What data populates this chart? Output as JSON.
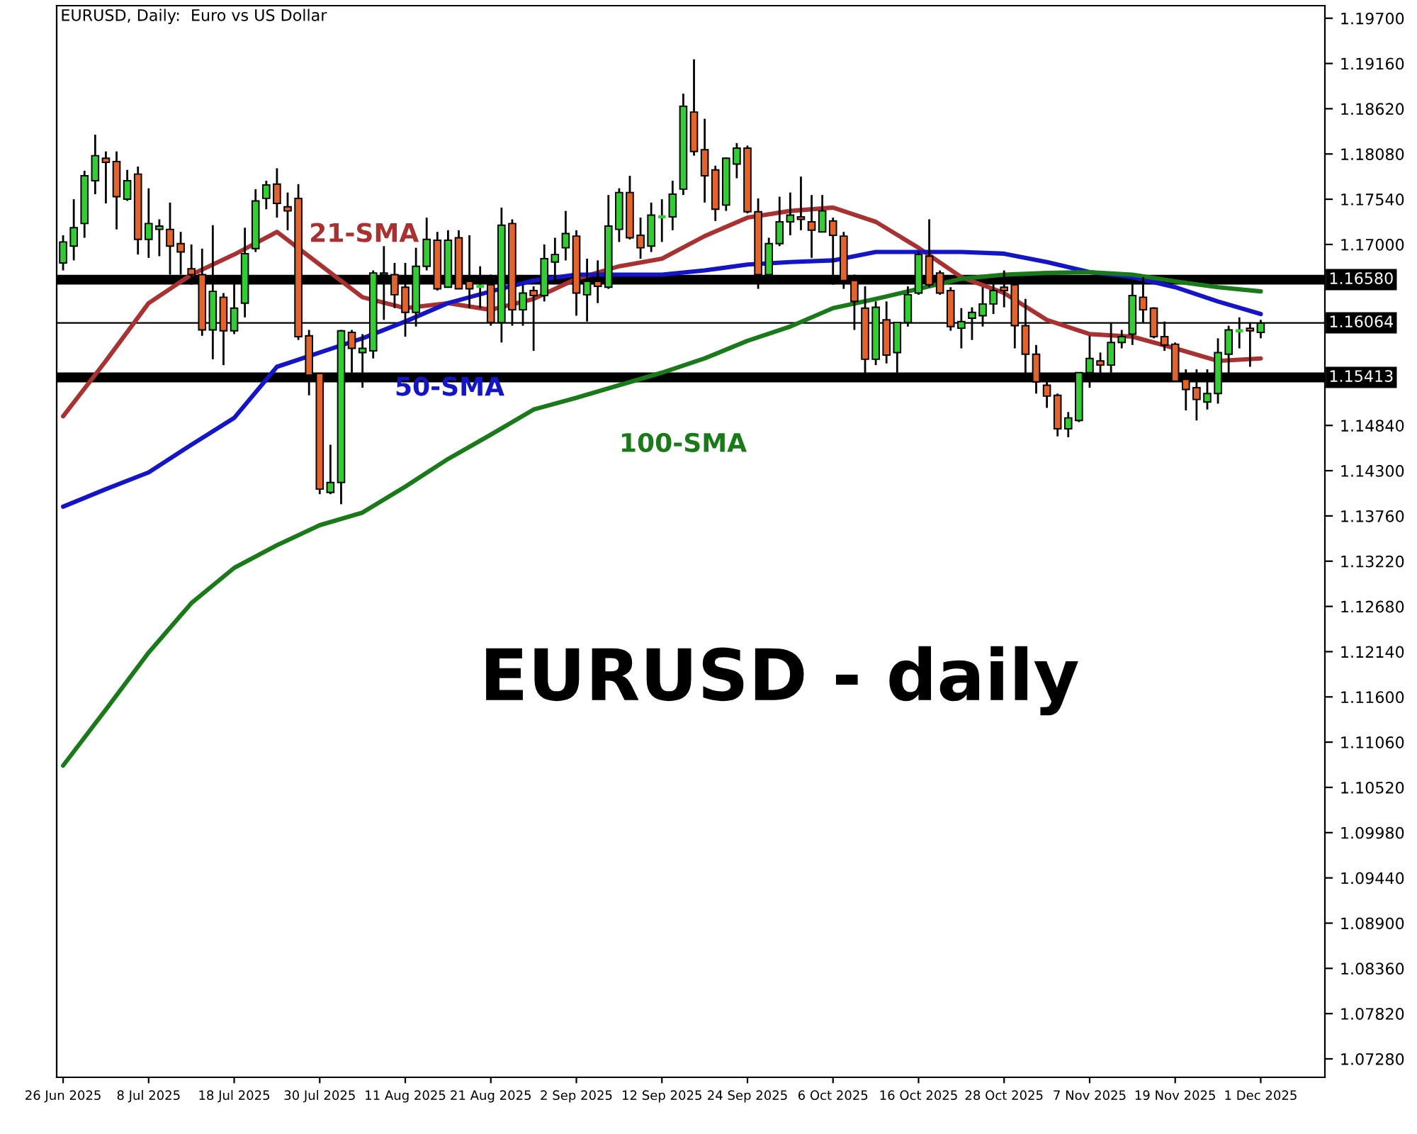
{
  "chart_data": {
    "type": "candlestick",
    "title": "EURUSD, Daily:  Euro vs US Dollar",
    "annotations": [
      "EURUSD - daily"
    ],
    "categories": [
      "26 Jun 2025",
      null,
      null,
      null,
      null,
      null,
      null,
      null,
      "8 Jul 2025",
      null,
      null,
      null,
      null,
      null,
      null,
      null,
      "18 Jul 2025",
      null,
      null,
      null,
      null,
      null,
      null,
      null,
      "30 Jul 2025",
      null,
      null,
      null,
      null,
      null,
      null,
      null,
      "11 Aug 2025",
      null,
      null,
      null,
      null,
      null,
      null,
      null,
      "21 Aug 2025",
      null,
      null,
      null,
      null,
      null,
      null,
      null,
      "2 Sep 2025",
      null,
      null,
      null,
      null,
      null,
      null,
      null,
      "12 Sep 2025",
      null,
      null,
      null,
      null,
      null,
      null,
      null,
      "24 Sep 2025",
      null,
      null,
      null,
      null,
      null,
      null,
      null,
      "6 Oct 2025",
      null,
      null,
      null,
      null,
      null,
      null,
      null,
      "16 Oct 2025",
      null,
      null,
      null,
      null,
      null,
      null,
      null,
      "28 Oct 2025",
      null,
      null,
      null,
      null,
      null,
      null,
      null,
      "7 Nov 2025",
      null,
      null,
      null,
      null,
      null,
      null,
      null,
      "19 Nov 2025",
      null,
      null,
      null,
      null,
      null,
      null,
      null,
      "1 Dec 2025"
    ],
    "ohlc": [
      [
        1.1678,
        1.1711,
        1.1669,
        1.1703
      ],
      [
        1.1698,
        1.1754,
        1.1681,
        1.172
      ],
      [
        1.1725,
        1.1788,
        1.1708,
        1.1782
      ],
      [
        1.1776,
        1.1831,
        1.176,
        1.1806
      ],
      [
        1.1803,
        1.1811,
        1.1749,
        1.1798
      ],
      [
        1.1799,
        1.1811,
        1.1718,
        1.1757
      ],
      [
        1.1754,
        1.1789,
        1.1752,
        1.1776
      ],
      [
        1.1784,
        1.1793,
        1.1688,
        1.1706
      ],
      [
        1.1706,
        1.1767,
        1.1684,
        1.1725
      ],
      [
        1.1718,
        1.173,
        1.1686,
        1.1722
      ],
      [
        1.1718,
        1.175,
        1.1664,
        1.1698
      ],
      [
        1.1701,
        1.1715,
        1.1664,
        1.1691
      ],
      [
        1.1671,
        1.17,
        1.1652,
        1.1664
      ],
      [
        1.1664,
        1.1695,
        1.1591,
        1.1598
      ],
      [
        1.1598,
        1.1723,
        1.1563,
        1.1644
      ],
      [
        1.1637,
        1.1642,
        1.1556,
        1.1597
      ],
      [
        1.1597,
        1.1657,
        1.1593,
        1.1624
      ],
      [
        1.163,
        1.172,
        1.1613,
        1.1689
      ],
      [
        1.1695,
        1.1766,
        1.1691,
        1.1752
      ],
      [
        1.1755,
        1.1776,
        1.1742,
        1.1771
      ],
      [
        1.1772,
        1.1791,
        1.1732,
        1.1749
      ],
      [
        1.1745,
        1.1762,
        1.1717,
        1.174
      ],
      [
        1.1755,
        1.1772,
        1.1586,
        1.159
      ],
      [
        1.1591,
        1.1598,
        1.152,
        1.1544
      ],
      [
        1.1546,
        1.1547,
        1.1402,
        1.1408
      ],
      [
        1.1404,
        1.1461,
        1.1402,
        1.1416
      ],
      [
        1.1416,
        1.1598,
        1.139,
        1.1597
      ],
      [
        1.1595,
        1.1598,
        1.1547,
        1.1576
      ],
      [
        1.1571,
        1.1593,
        1.1529,
        1.1576
      ],
      [
        1.1573,
        1.1669,
        1.1564,
        1.1666
      ],
      [
        1.1664,
        1.1698,
        1.161,
        1.1666
      ],
      [
        1.1664,
        1.1678,
        1.1624,
        1.164
      ],
      [
        1.1649,
        1.1678,
        1.159,
        1.1619
      ],
      [
        1.1619,
        1.1696,
        1.1602,
        1.1674
      ],
      [
        1.1674,
        1.1732,
        1.1669,
        1.1706
      ],
      [
        1.1705,
        1.1715,
        1.1645,
        1.1647
      ],
      [
        1.1649,
        1.1717,
        1.1649,
        1.1705
      ],
      [
        1.1708,
        1.1717,
        1.1647,
        1.1647
      ],
      [
        1.1656,
        1.1711,
        1.1624,
        1.1647
      ],
      [
        1.165,
        1.1674,
        1.1624,
        1.165
      ],
      [
        1.1652,
        1.1664,
        1.1603,
        1.1607
      ],
      [
        1.1607,
        1.1744,
        1.1583,
        1.1723
      ],
      [
        1.1725,
        1.173,
        1.1603,
        1.1622
      ],
      [
        1.1622,
        1.1652,
        1.1603,
        1.1642
      ],
      [
        1.1645,
        1.165,
        1.1573,
        1.1639
      ],
      [
        1.1639,
        1.17,
        1.1632,
        1.1683
      ],
      [
        1.1679,
        1.1708,
        1.1657,
        1.1688
      ],
      [
        1.1696,
        1.174,
        1.1681,
        1.1713
      ],
      [
        1.171,
        1.1717,
        1.1615,
        1.1642
      ],
      [
        1.164,
        1.1683,
        1.1608,
        1.1656
      ],
      [
        1.1656,
        1.1681,
        1.163,
        1.165
      ],
      [
        1.1649,
        1.1759,
        1.1647,
        1.1722
      ],
      [
        1.1718,
        1.1767,
        1.1703,
        1.1762
      ],
      [
        1.1762,
        1.1782,
        1.1706,
        1.1708
      ],
      [
        1.1711,
        1.1732,
        1.1683,
        1.1696
      ],
      [
        1.1698,
        1.175,
        1.1691,
        1.1735
      ],
      [
        1.1733,
        1.1754,
        1.1703,
        1.1733
      ],
      [
        1.1733,
        1.1776,
        1.1717,
        1.176
      ],
      [
        1.1766,
        1.188,
        1.1759,
        1.1865
      ],
      [
        1.1858,
        1.1921,
        1.1806,
        1.1811
      ],
      [
        1.1813,
        1.185,
        1.175,
        1.1782
      ],
      [
        1.1789,
        1.1794,
        1.1728,
        1.1742
      ],
      [
        1.1747,
        1.1804,
        1.174,
        1.1803
      ],
      [
        1.1796,
        1.1821,
        1.1779,
        1.1815
      ],
      [
        1.1815,
        1.1818,
        1.1737,
        1.1739
      ],
      [
        1.1739,
        1.1755,
        1.1647,
        1.1664
      ],
      [
        1.1664,
        1.1708,
        1.1661,
        1.1701
      ],
      [
        1.1701,
        1.1757,
        1.1698,
        1.1727
      ],
      [
        1.1727,
        1.1762,
        1.1711,
        1.1735
      ],
      [
        1.1733,
        1.1781,
        1.1717,
        1.173
      ],
      [
        1.1727,
        1.1759,
        1.1684,
        1.1717
      ],
      [
        1.1715,
        1.1759,
        1.1715,
        1.174
      ],
      [
        1.1728,
        1.1732,
        1.1652,
        1.1711
      ],
      [
        1.171,
        1.1715,
        1.1647,
        1.1657
      ],
      [
        1.1657,
        1.1664,
        1.1598,
        1.1632
      ],
      [
        1.1624,
        1.165,
        1.1546,
        1.1563
      ],
      [
        1.1563,
        1.1632,
        1.1556,
        1.1625
      ],
      [
        1.161,
        1.1632,
        1.1558,
        1.1568
      ],
      [
        1.1571,
        1.1607,
        1.1546,
        1.1607
      ],
      [
        1.1607,
        1.165,
        1.1602,
        1.164
      ],
      [
        1.1642,
        1.1691,
        1.164,
        1.1688
      ],
      [
        1.1686,
        1.173,
        1.1649,
        1.1652
      ],
      [
        1.1666,
        1.1669,
        1.164,
        1.1642
      ],
      [
        1.1645,
        1.1649,
        1.1597,
        1.1602
      ],
      [
        1.16,
        1.1624,
        1.1576,
        1.1608
      ],
      [
        1.1612,
        1.1625,
        1.1586,
        1.1619
      ],
      [
        1.1615,
        1.1649,
        1.1602,
        1.1629
      ],
      [
        1.1629,
        1.1656,
        1.1617,
        1.1645
      ],
      [
        1.1649,
        1.1669,
        1.1625,
        1.1645
      ],
      [
        1.1652,
        1.1656,
        1.1576,
        1.1603
      ],
      [
        1.1603,
        1.1635,
        1.1546,
        1.1569
      ],
      [
        1.1569,
        1.158,
        1.1522,
        1.1536
      ],
      [
        1.1532,
        1.1537,
        1.1505,
        1.1519
      ],
      [
        1.152,
        1.1522,
        1.1471,
        1.148
      ],
      [
        1.148,
        1.15,
        1.147,
        1.1493
      ],
      [
        1.149,
        1.1547,
        1.1488,
        1.1547
      ],
      [
        1.1547,
        1.1591,
        1.1529,
        1.1564
      ],
      [
        1.1561,
        1.1571,
        1.1546,
        1.1556
      ],
      [
        1.1556,
        1.1607,
        1.1546,
        1.1583
      ],
      [
        1.1583,
        1.1598,
        1.1576,
        1.159
      ],
      [
        1.1593,
        1.1657,
        1.158,
        1.1639
      ],
      [
        1.1637,
        1.1661,
        1.1607,
        1.1622
      ],
      [
        1.1624,
        1.1625,
        1.1588,
        1.159
      ],
      [
        1.159,
        1.1608,
        1.1573,
        1.158
      ],
      [
        1.1581,
        1.1583,
        1.1536,
        1.1537
      ],
      [
        1.1539,
        1.1551,
        1.1502,
        1.1527
      ],
      [
        1.1529,
        1.1551,
        1.149,
        1.1515
      ],
      [
        1.1512,
        1.1551,
        1.1503,
        1.1522
      ],
      [
        1.1522,
        1.1588,
        1.151,
        1.1571
      ],
      [
        1.1569,
        1.1603,
        1.1546,
        1.1598
      ],
      [
        1.1597,
        1.1613,
        1.1576,
        1.1597
      ],
      [
        1.16,
        1.1607,
        1.1554,
        1.1597
      ],
      [
        1.1595,
        1.161,
        1.1588,
        1.1606
      ]
    ],
    "colors": [
      "#32cd32",
      "#32cd32",
      "#32cd32",
      "#32cd32",
      "#e2632c",
      "#e2632c",
      "#32cd32",
      "#e2632c",
      "#32cd32",
      "#32cd32",
      "#e2632c",
      "#e2632c",
      "#e2632c",
      "#e2632c",
      "#32cd32",
      "#e2632c",
      "#32cd32",
      "#32cd32",
      "#32cd32",
      "#32cd32",
      "#e2632c",
      "#e2632c",
      "#e2632c",
      "#e2632c",
      "#e2632c",
      "#32cd32",
      "#32cd32",
      "#e2632c",
      "#32cd32",
      "#32cd32",
      "#32cd32",
      "#e2632c",
      "#e2632c",
      "#32cd32",
      "#32cd32",
      "#e2632c",
      "#32cd32",
      "#e2632c",
      "#e2632c",
      "#32cd32",
      "#e2632c",
      "#32cd32",
      "#e2632c",
      "#32cd32",
      "#e2632c",
      "#32cd32",
      "#32cd32",
      "#32cd32",
      "#e2632c",
      "#32cd32",
      "#e2632c",
      "#32cd32",
      "#32cd32",
      "#e2632c",
      "#e2632c",
      "#32cd32",
      "#32cd32",
      "#32cd32",
      "#32cd32",
      "#e2632c",
      "#e2632c",
      "#e2632c",
      "#32cd32",
      "#32cd32",
      "#e2632c",
      "#e2632c",
      "#32cd32",
      "#32cd32",
      "#32cd32",
      "#e2632c",
      "#e2632c",
      "#32cd32",
      "#e2632c",
      "#e2632c",
      "#e2632c",
      "#e2632c",
      "#32cd32",
      "#e2632c",
      "#32cd32",
      "#32cd32",
      "#32cd32",
      "#e2632c",
      "#e2632c",
      "#e2632c",
      "#32cd32",
      "#32cd32",
      "#32cd32",
      "#32cd32",
      "#e2632c",
      "#e2632c",
      "#e2632c",
      "#e2632c",
      "#e2632c",
      "#e2632c",
      "#32cd32",
      "#32cd32",
      "#32cd32",
      "#e2632c",
      "#32cd32",
      "#32cd32",
      "#32cd32",
      "#e2632c",
      "#e2632c",
      "#e2632c",
      "#e2632c",
      "#e2632c",
      "#e2632c",
      "#32cd32",
      "#32cd32",
      "#32cd32",
      "#32cd32",
      "#e2632c",
      "#32cd32"
    ],
    "series": [
      {
        "name": "21-SMA",
        "type": "line",
        "color": "#a83232",
        "values": [
          1.1495,
          null,
          null,
          null,
          1.1561,
          null,
          null,
          null,
          1.163,
          null,
          null,
          null,
          1.1664,
          null,
          null,
          null,
          1.1688,
          null,
          null,
          null,
          1.1715,
          null,
          null,
          null,
          1.1676,
          null,
          null,
          null,
          1.1637,
          null,
          null,
          null,
          1.1624,
          null,
          null,
          null,
          1.163,
          null,
          null,
          null,
          1.1622,
          null,
          null,
          null,
          1.1635,
          null,
          null,
          null,
          1.1659,
          null,
          null,
          null,
          1.1674,
          null,
          null,
          null,
          1.1683,
          null,
          null,
          null,
          1.171,
          null,
          null,
          null,
          1.1732,
          null,
          null,
          null,
          1.174,
          null,
          null,
          null,
          1.1744,
          null,
          null,
          null,
          1.1727,
          null,
          null,
          null,
          1.1696,
          null,
          null,
          null,
          1.1661,
          null,
          null,
          null,
          1.1642,
          null,
          null,
          null,
          1.161,
          null,
          null,
          null,
          1.1593,
          null,
          null,
          null,
          1.159,
          null,
          null,
          null,
          1.1576,
          null,
          null,
          null,
          1.1561,
          null,
          null,
          null,
          1.1564
        ]
      },
      {
        "name": "50-SMA",
        "type": "line",
        "color": "#1515c8",
        "values": [
          1.1387,
          null,
          null,
          null,
          1.1408,
          null,
          null,
          null,
          1.1428,
          null,
          null,
          null,
          1.1461,
          null,
          null,
          null,
          1.1493,
          null,
          null,
          null,
          1.1554,
          null,
          null,
          null,
          1.1571,
          null,
          null,
          null,
          1.1588,
          null,
          null,
          null,
          1.1608,
          null,
          null,
          null,
          1.163,
          null,
          null,
          null,
          1.1644,
          null,
          null,
          null,
          1.1657,
          null,
          null,
          null,
          1.1664,
          null,
          null,
          null,
          1.1664,
          null,
          null,
          null,
          1.1664,
          null,
          null,
          null,
          1.1669,
          null,
          null,
          null,
          1.1676,
          null,
          null,
          null,
          1.1679,
          null,
          null,
          null,
          1.1681,
          null,
          null,
          null,
          1.1691,
          null,
          null,
          null,
          1.1691,
          null,
          null,
          null,
          1.1691,
          null,
          null,
          null,
          1.1689,
          null,
          null,
          null,
          1.1679,
          null,
          null,
          null,
          1.1667,
          null,
          null,
          null,
          1.1661,
          null,
          null,
          null,
          1.1649,
          null,
          null,
          null,
          1.1632,
          null,
          null,
          null,
          1.1617
        ]
      },
      {
        "name": "100-SMA",
        "type": "line",
        "color": "#1a7a1a",
        "values": [
          1.1078,
          null,
          null,
          null,
          1.1145,
          null,
          null,
          null,
          1.1213,
          null,
          null,
          null,
          1.1272,
          null,
          null,
          null,
          1.1314,
          null,
          null,
          null,
          1.1341,
          null,
          null,
          null,
          1.1365,
          null,
          null,
          null,
          1.138,
          null,
          null,
          null,
          1.1411,
          null,
          null,
          null,
          1.1444,
          null,
          null,
          null,
          1.1473,
          null,
          null,
          null,
          1.1503,
          null,
          null,
          null,
          1.1517,
          null,
          null,
          null,
          1.1532,
          null,
          null,
          null,
          1.1547,
          null,
          null,
          null,
          1.1564,
          null,
          null,
          null,
          1.1585,
          null,
          null,
          null,
          1.1602,
          null,
          null,
          null,
          1.1624,
          null,
          null,
          null,
          1.1635,
          null,
          null,
          null,
          1.1647,
          null,
          null,
          null,
          1.1659,
          null,
          null,
          null,
          1.1664,
          null,
          null,
          null,
          1.1666,
          null,
          null,
          null,
          1.1667,
          null,
          null,
          null,
          1.1664,
          null,
          null,
          null,
          1.1656,
          null,
          null,
          null,
          1.1649,
          null,
          null,
          null,
          1.1644
        ]
      }
    ],
    "ref_lines": [
      {
        "axis": "y",
        "value": 1.1658,
        "label": "1.16580",
        "color": "#000000"
      },
      {
        "axis": "y",
        "value": 1.15413,
        "label": "1.15413",
        "color": "#000000"
      },
      {
        "axis": "y",
        "value": 1.16064,
        "label": "1.16064",
        "color": "#000000"
      }
    ],
    "ylim": [
      1.0706,
      1.1985
    ],
    "yticks": [
      {
        "value": 1.197,
        "label": "1.19700"
      },
      {
        "value": 1.1916,
        "label": "1.19160"
      },
      {
        "value": 1.1862,
        "label": "1.18620"
      },
      {
        "value": 1.1808,
        "label": "1.18080"
      },
      {
        "value": 1.1754,
        "label": "1.17540"
      },
      {
        "value": 1.17,
        "label": "1.17000"
      },
      {
        "value": 1.1484,
        "label": "1.14840"
      },
      {
        "value": 1.143,
        "label": "1.14300"
      },
      {
        "value": 1.1376,
        "label": "1.13760"
      },
      {
        "value": 1.1322,
        "label": "1.13220"
      },
      {
        "value": 1.1268,
        "label": "1.12680"
      },
      {
        "value": 1.1214,
        "label": "1.12140"
      },
      {
        "value": 1.116,
        "label": "1.11600"
      },
      {
        "value": 1.1106,
        "label": "1.11060"
      },
      {
        "value": 1.1052,
        "label": "1.10520"
      },
      {
        "value": 1.0998,
        "label": "1.09980"
      },
      {
        "value": 1.0944,
        "label": "1.09440"
      },
      {
        "value": 1.089,
        "label": "1.08900"
      },
      {
        "value": 1.0836,
        "label": "1.08360"
      },
      {
        "value": 1.0782,
        "label": "1.07820"
      },
      {
        "value": 1.0728,
        "label": "1.07280"
      }
    ],
    "grid": false,
    "legend": false
  }
}
